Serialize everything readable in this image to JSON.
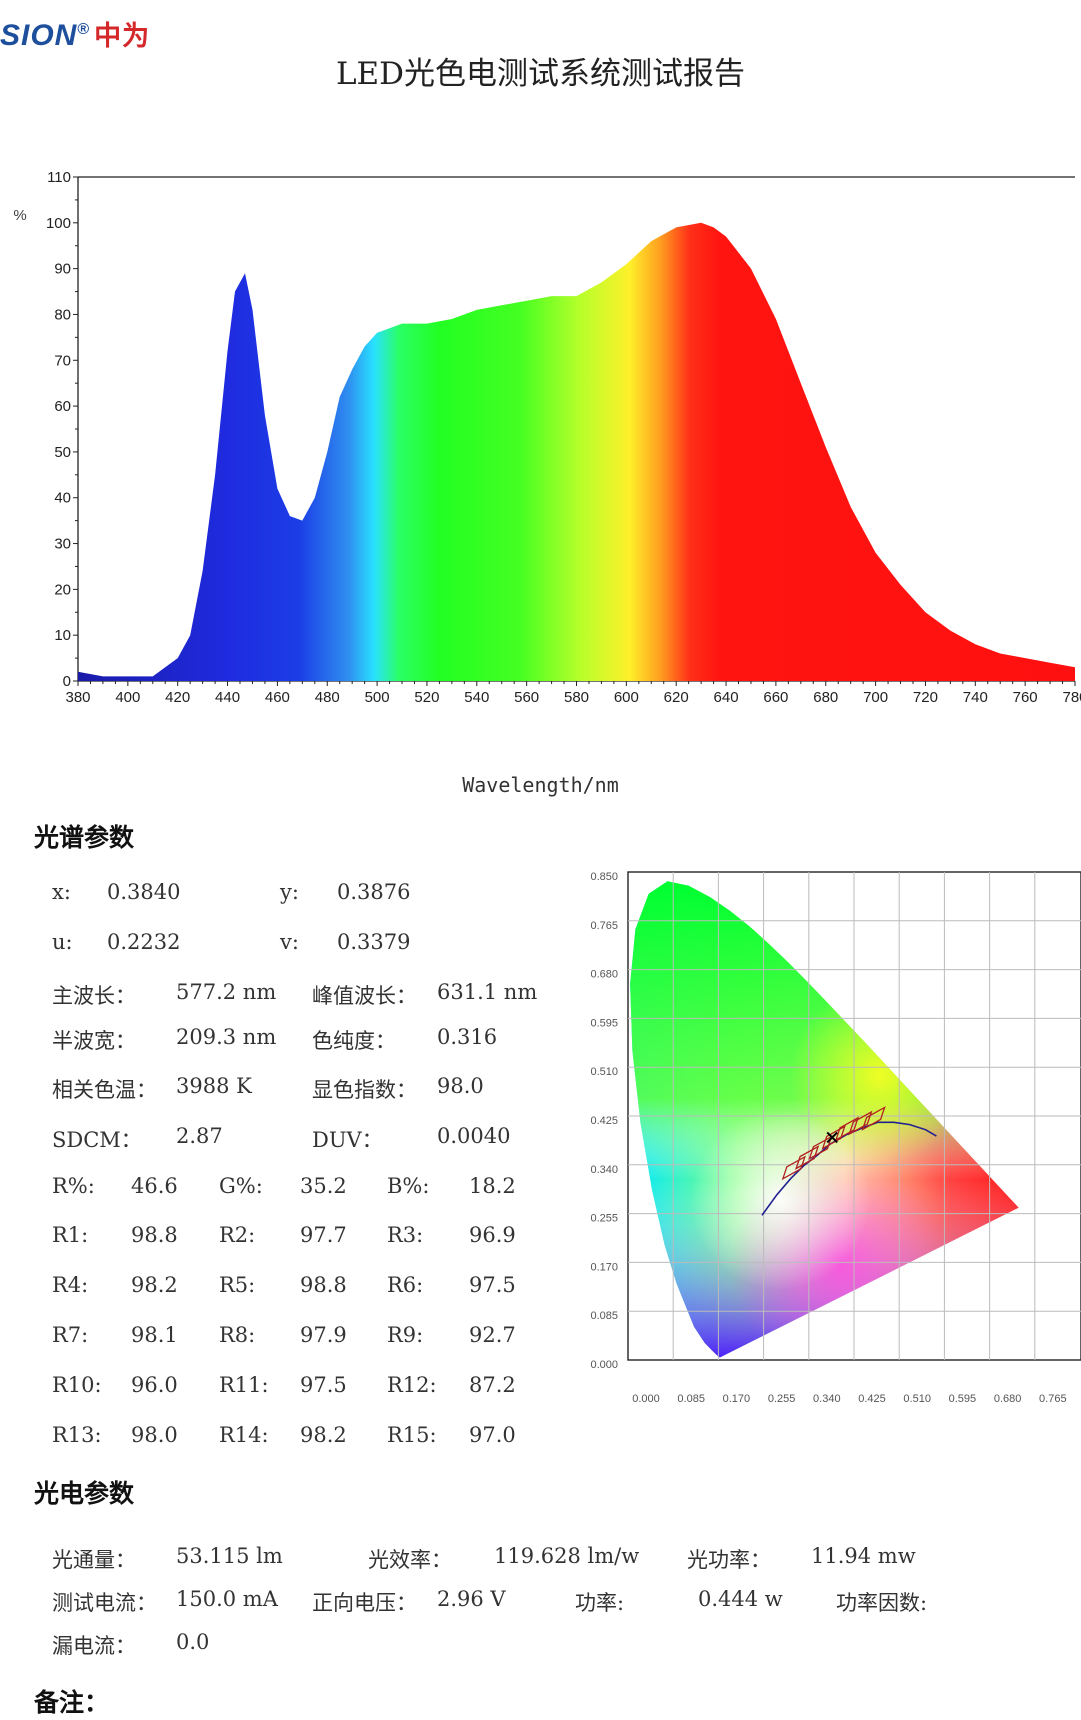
{
  "header": {
    "logo_text": "SION",
    "logo_reg": "®",
    "logo_cn": "中为",
    "title": "LED光色电测试系统测试报告"
  },
  "colors": {
    "brand_blue": "#1d4f9c",
    "brand_red": "#d4282a"
  },
  "chart_data": [
    {
      "type": "area",
      "ylabel": "%",
      "xlabel": "Wavelength/nm",
      "ylim": [
        0,
        110
      ],
      "xlim": [
        380,
        780
      ],
      "yticks": [
        0,
        10,
        20,
        30,
        40,
        50,
        60,
        70,
        80,
        90,
        100,
        110
      ],
      "xticks": [
        380,
        400,
        420,
        440,
        460,
        480,
        500,
        520,
        540,
        560,
        580,
        600,
        620,
        640,
        660,
        680,
        700,
        720,
        740,
        760,
        780
      ],
      "grid": false,
      "x": [
        380,
        390,
        400,
        410,
        420,
        425,
        430,
        435,
        440,
        443,
        447,
        450,
        455,
        460,
        465,
        470,
        475,
        480,
        485,
        490,
        495,
        500,
        510,
        520,
        530,
        540,
        550,
        560,
        570,
        580,
        590,
        600,
        610,
        620,
        630,
        635,
        640,
        650,
        660,
        670,
        680,
        690,
        700,
        710,
        720,
        730,
        740,
        750,
        760,
        770,
        780
      ],
      "y": [
        2,
        1,
        1,
        1,
        5,
        10,
        24,
        45,
        72,
        85,
        89,
        81,
        58,
        42,
        36,
        35,
        40,
        50,
        62,
        68,
        73,
        76,
        78,
        78,
        79,
        81,
        82,
        83,
        84,
        84,
        87,
        91,
        96,
        99,
        100,
        99,
        97,
        90,
        79,
        65,
        51,
        38,
        28,
        21,
        15,
        11,
        8,
        6,
        5,
        4,
        3
      ]
    },
    {
      "type": "scatter",
      "title": "",
      "xlim": [
        0,
        0.85
      ],
      "ylim": [
        0,
        0.85
      ],
      "xticks": [
        "0.000",
        "0.085",
        "0.170",
        "0.255",
        "0.340",
        "0.425",
        "0.510",
        "0.595",
        "0.680",
        "0.765"
      ],
      "yticks": [
        "0.850",
        "0.765",
        "0.680",
        "0.595",
        "0.510",
        "0.425",
        "0.340",
        "0.255",
        "0.170",
        "0.085",
        "0.000"
      ],
      "grid": true,
      "series": [
        {
          "x": [
            0.384
          ],
          "y": [
            0.3876
          ]
        }
      ]
    }
  ],
  "spectrum": {
    "section_title": "光谱参数",
    "x_label": "x:",
    "x_value": "0.3840",
    "y_label": "y:",
    "y_value": "0.3876",
    "u_label": "u:",
    "u_value": "0.2232",
    "v_label": "v:",
    "v_value": "0.3379",
    "dominant_label": "主波长：",
    "dominant_value": "577.2 nm",
    "peak_label": "峰值波长：",
    "peak_value": "631.1 nm",
    "halfwidth_label": "半波宽：",
    "halfwidth_value": "209.3 nm",
    "purity_label": "色纯度：",
    "purity_value": "0.316",
    "cct_label": "相关色温：",
    "cct_value": "3988 K",
    "cri_label": "显色指数：",
    "cri_value": "98.0",
    "sdcm_label": "SDCM：",
    "sdcm_value": "2.87",
    "duv_label": "DUV：",
    "duv_value": "0.0040",
    "rgb": [
      {
        "label": "R%:",
        "value": "46.6"
      },
      {
        "label": "G%:",
        "value": "35.2"
      },
      {
        "label": "B%:",
        "value": "18.2"
      }
    ],
    "ri_rows": [
      [
        {
          "label": "R1:",
          "value": "98.8"
        },
        {
          "label": "R2:",
          "value": "97.7"
        },
        {
          "label": "R3:",
          "value": "96.9"
        }
      ],
      [
        {
          "label": "R4:",
          "value": "98.2"
        },
        {
          "label": "R5:",
          "value": "98.8"
        },
        {
          "label": "R6:",
          "value": "97.5"
        }
      ],
      [
        {
          "label": "R7:",
          "value": "98.1"
        },
        {
          "label": "R8:",
          "value": "97.9"
        },
        {
          "label": "R9:",
          "value": "92.7"
        }
      ],
      [
        {
          "label": "R10:",
          "value": "96.0"
        },
        {
          "label": "R11:",
          "value": "97.5"
        },
        {
          "label": "R12:",
          "value": "87.2"
        }
      ],
      [
        {
          "label": "R13:",
          "value": "98.0"
        },
        {
          "label": "R14:",
          "value": "98.2"
        },
        {
          "label": "R15:",
          "value": "97.0"
        }
      ]
    ]
  },
  "photo": {
    "section_title": "光电参数",
    "flux_label": "光通量：",
    "flux_value": "53.115 lm",
    "efficacy_label": "光效率：",
    "efficacy_value": "119.628 lm/w",
    "optical_power_label": "光功率：",
    "optical_power_value": "11.94 mw",
    "current_label": "测试电流：",
    "current_value": "150.0 mA",
    "voltage_label": "正向电压：",
    "voltage_value": "2.96 V",
    "power_label": "功率:",
    "power_value": "0.444 w",
    "pf_label": "功率因数:",
    "leak_label": "漏电流：",
    "leak_value": "0.0"
  },
  "notes": {
    "label": "备注："
  }
}
